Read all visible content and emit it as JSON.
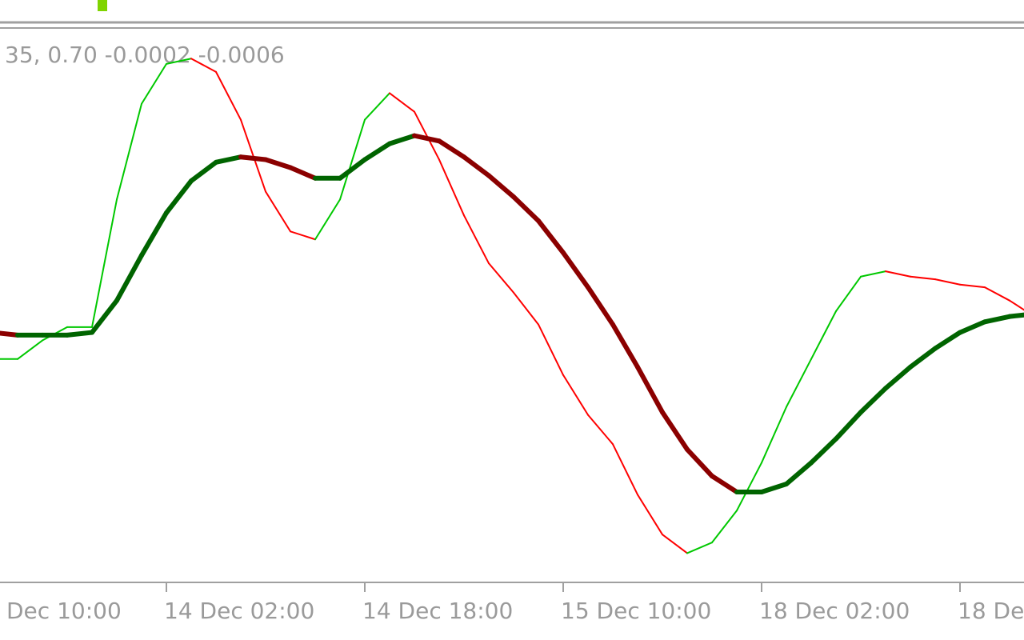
{
  "chart_data": {
    "type": "line",
    "indicator_label": "35, 0.70 -0.0002 -0.0006",
    "xlim": [
      0,
      43
    ],
    "xticks": [
      {
        "value": 0,
        "label": "Dec 10:00"
      },
      {
        "value": 8,
        "label": "14 Dec 02:00"
      },
      {
        "value": 16,
        "label": "14 Dec 18:00"
      },
      {
        "value": 24,
        "label": "15 Dec 10:00"
      },
      {
        "value": 32,
        "label": "18 Dec 02:00"
      },
      {
        "value": 40,
        "label": "18 De"
      }
    ],
    "ylim": [
      -0.0106,
      0.0101
    ],
    "grid": false,
    "series": [
      {
        "up_color": "#00c800",
        "down_color": "#ff0000",
        "width": 2,
        "values": [
          null,
          -0.0022,
          -0.0022,
          -0.0015,
          -0.001,
          -0.001,
          0.0038,
          0.0074,
          0.0089,
          0.0091,
          0.0086,
          0.0068,
          0.0041,
          0.0026,
          0.0023,
          0.0038,
          0.0068,
          0.0078,
          0.0071,
          0.0053,
          0.0032,
          0.0014,
          0.0003,
          -0.0009,
          -0.0028,
          -0.0043,
          -0.0054,
          -0.0073,
          -0.0088,
          -0.0095,
          -0.0091,
          -0.0079,
          -0.0061,
          -0.004,
          -0.0022,
          -0.0004,
          0.0009,
          0.0011,
          0.0009,
          0.0008,
          0.0006,
          0.0005,
          0,
          -0.0006
        ]
      },
      {
        "up_color": "#006400",
        "down_color": "#8b0000",
        "width": 6,
        "values": [
          null,
          -0.0012,
          -0.0013,
          -0.0013,
          -0.0013,
          -0.0012,
          0,
          0.0017,
          0.0033,
          0.0045,
          0.0052,
          0.0054,
          0.0053,
          0.005,
          0.0046,
          0.0046,
          0.0053,
          0.0059,
          0.0062,
          0.006,
          0.0054,
          0.0047,
          0.0039,
          0.003,
          0.0018,
          0.0005,
          -0.0009,
          -0.0025,
          -0.0042,
          -0.0056,
          -0.0066,
          -0.0072,
          -0.0072,
          -0.0069,
          -0.0061,
          -0.0052,
          -0.0042,
          -0.0033,
          -0.0025,
          -0.0018,
          -0.0012,
          -0.0008,
          -0.0006,
          -0.0005
        ]
      }
    ]
  }
}
